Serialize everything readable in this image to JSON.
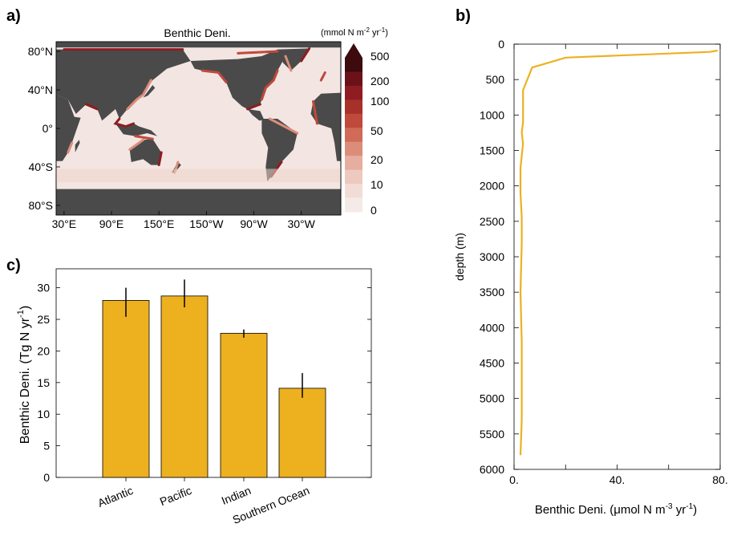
{
  "panels": {
    "a": "a)",
    "b": "b)",
    "c": "c)"
  },
  "chart_data": [
    {
      "type": "heatmap",
      "panel": "a",
      "title": "Benthic Deni.",
      "colorbar_label": "(mmol N m",
      "colorbar_label_sup1": "-2",
      "colorbar_label_mid": " yr",
      "colorbar_label_sup2": "-1",
      "colorbar_label_end": ")",
      "colorbar_ticks": [
        "500",
        "200",
        "100",
        "50",
        "20",
        "10",
        "0"
      ],
      "colorbar_colors": [
        "#3d0a0e",
        "#6b1219",
        "#8e1c22",
        "#a8302b",
        "#bf4a3b",
        "#cf6b57",
        "#dc8d7a",
        "#e6aea0",
        "#edc9bf",
        "#f2ddd6",
        "#f4ebe8"
      ],
      "y_ticks": [
        "80°N",
        "40°N",
        "0°",
        "40°S",
        "80°S"
      ],
      "x_ticks": [
        "30°E",
        "90°E",
        "150°E",
        "150°W",
        "90°W",
        "30°W"
      ],
      "land_color": "#4a4a4a",
      "ocean_color": "#f3e6e2"
    },
    {
      "type": "line",
      "panel": "b",
      "xlabel": "Benthic Deni. (μmol N m",
      "xlabel_sup1": "-3",
      "xlabel_mid": " yr",
      "xlabel_sup2": "-1",
      "xlabel_end": ")",
      "ylabel": "depth (m)",
      "xlim": [
        0,
        80
      ],
      "ylim": [
        0,
        6000
      ],
      "x_tick_labels": [
        "0.",
        "40.",
        "80."
      ],
      "y_tick_labels": [
        "0",
        "500",
        "1000",
        "1500",
        "2000",
        "2500",
        "3000",
        "3500",
        "4000",
        "4500",
        "5000",
        "5500",
        "6000"
      ],
      "y_reversed": true,
      "color": "#EDB120",
      "x": [
        79,
        76,
        20,
        7,
        3.5,
        3.5,
        3.5,
        3.0,
        3.5,
        2.5,
        2.5,
        3.0,
        3.0,
        2.5,
        3.0,
        3.0,
        3.0,
        2.5
      ],
      "y": [
        90,
        110,
        190,
        330,
        650,
        700,
        1100,
        1250,
        1400,
        1750,
        2100,
        2450,
        2800,
        3500,
        4200,
        4800,
        5300,
        5800
      ]
    },
    {
      "type": "bar",
      "panel": "c",
      "ylabel": "Benthic Deni. (Tg N yr",
      "ylabel_sup": "-1",
      "ylabel_end": ")",
      "categories": [
        "Atlantic",
        "Pacific",
        "Indian",
        "Southern Ocean"
      ],
      "values": [
        28.0,
        28.7,
        22.8,
        14.1
      ],
      "error_low": [
        25.4,
        26.9,
        22.1,
        12.6
      ],
      "error_high": [
        30.0,
        31.3,
        23.4,
        16.5
      ],
      "ylim": [
        0,
        33
      ],
      "y_ticks": [
        "0",
        "5",
        "10",
        "15",
        "20",
        "25",
        "30"
      ],
      "color": "#EDB120"
    }
  ]
}
